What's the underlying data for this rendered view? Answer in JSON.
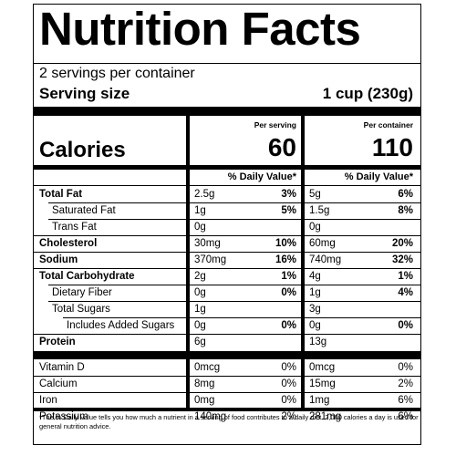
{
  "label": {
    "title": "Nutrition Facts",
    "servings_per_container": "2 servings per container",
    "serving_size_label": "Serving size",
    "serving_size_value": "1 cup (230g)",
    "per_serving_header": "Per serving",
    "per_container_header": "Per container",
    "calories_label": "Calories",
    "calories_per_serving": "60",
    "calories_per_container": "110",
    "daily_value_header": "% Daily Value*",
    "nutrients": [
      {
        "name": "Total Fat",
        "bold": true,
        "indent": 0,
        "serving_amount": "2.5g",
        "serving_dv": "3%",
        "container_amount": "5g",
        "container_dv": "6%"
      },
      {
        "name": "Saturated Fat",
        "bold": false,
        "indent": 1,
        "serving_amount": "1g",
        "serving_dv": "5%",
        "container_amount": "1.5g",
        "container_dv": "8%"
      },
      {
        "name": "Trans Fat",
        "bold": false,
        "indent": 1,
        "serving_amount": "0g",
        "serving_dv": "",
        "container_amount": "0g",
        "container_dv": ""
      },
      {
        "name": "Cholesterol",
        "bold": true,
        "indent": 0,
        "serving_amount": "30mg",
        "serving_dv": "10%",
        "container_amount": "60mg",
        "container_dv": "20%"
      },
      {
        "name": "Sodium",
        "bold": true,
        "indent": 0,
        "serving_amount": "370mg",
        "serving_dv": "16%",
        "container_amount": "740mg",
        "container_dv": "32%"
      },
      {
        "name": "Total Carbohydrate",
        "bold": true,
        "indent": 0,
        "serving_amount": "2g",
        "serving_dv": "1%",
        "container_amount": "4g",
        "container_dv": "1%"
      },
      {
        "name": "Dietary Fiber",
        "bold": false,
        "indent": 1,
        "serving_amount": "0g",
        "serving_dv": "0%",
        "container_amount": "1g",
        "container_dv": "4%"
      },
      {
        "name": "Total Sugars",
        "bold": false,
        "indent": 1,
        "serving_amount": "1g",
        "serving_dv": "",
        "container_amount": "3g",
        "container_dv": ""
      },
      {
        "name": "Includes Added Sugars",
        "bold": false,
        "indent": 2,
        "serving_amount": "0g",
        "serving_dv": "0%",
        "container_amount": "0g",
        "container_dv": "0%"
      },
      {
        "name": "Protein",
        "bold": true,
        "indent": 0,
        "serving_amount": "6g",
        "serving_dv": "",
        "container_amount": "13g",
        "container_dv": ""
      }
    ],
    "vitamins": [
      {
        "name": "Vitamin D",
        "serving_amount": "0mcg",
        "serving_dv": "0%",
        "container_amount": "0mcg",
        "container_dv": "0%"
      },
      {
        "name": "Calcium",
        "serving_amount": "8mg",
        "serving_dv": "0%",
        "container_amount": "15mg",
        "container_dv": "2%"
      },
      {
        "name": "Iron",
        "serving_amount": "0mg",
        "serving_dv": "0%",
        "container_amount": "1mg",
        "container_dv": "6%"
      },
      {
        "name": "Potassium",
        "serving_amount": "140mg",
        "serving_dv": "2%",
        "container_amount": "281mg",
        "container_dv": "6%"
      }
    ],
    "footnote": "*The % Daily Value tells you how much a nutrient in a serving of food contributes to a daily diet. 2,000 calories a day is used for general nutrition advice."
  }
}
